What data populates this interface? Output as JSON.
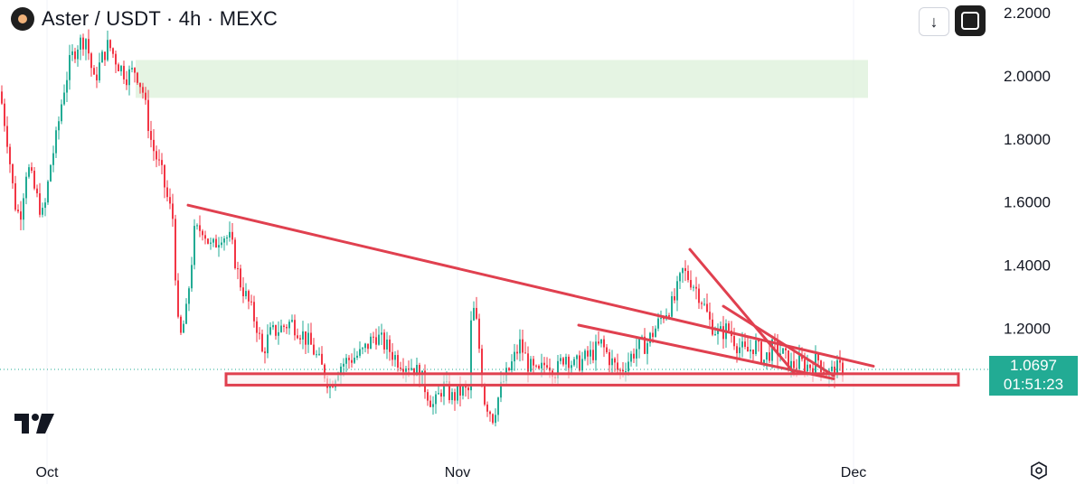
{
  "header": {
    "title": "Aster / USDT · 4h · MEXC"
  },
  "toolbar": {
    "download_icon": "arrow-down-icon",
    "fullscreen_icon": "fullscreen-icon"
  },
  "last_price": {
    "price": "1.0697",
    "countdown": "01:51:23",
    "color": "#22ab94"
  },
  "colors": {
    "up": "#22ab94",
    "down": "#f23645",
    "drawing": "#e0404f",
    "zone": "#dcf0da"
  },
  "chart_data": {
    "type": "candlestick",
    "title": "Aster / USDT · 4h · MEXC",
    "y_ticks": [
      "2.2000",
      "2.0000",
      "1.8000",
      "1.6000",
      "1.4000",
      "1.2000"
    ],
    "y_range": [
      0.9,
      2.2
    ],
    "x_ticks": [
      "Oct",
      "Nov",
      "Dec"
    ],
    "grid": false,
    "last_price": 1.0697,
    "price_path": [
      [
        1.95,
        0
      ],
      [
        1.8,
        8
      ],
      [
        1.6,
        16
      ],
      [
        1.55,
        22
      ],
      [
        1.72,
        30
      ],
      [
        1.62,
        40
      ],
      [
        1.55,
        48
      ],
      [
        1.72,
        56
      ],
      [
        1.8,
        62
      ],
      [
        1.95,
        70
      ],
      [
        2.05,
        78
      ],
      [
        2.1,
        86
      ],
      [
        2.12,
        95
      ],
      [
        1.98,
        104
      ],
      [
        2.05,
        112
      ],
      [
        2.1,
        120
      ],
      [
        2.04,
        130
      ],
      [
        2.0,
        140
      ],
      [
        2.02,
        150
      ],
      [
        1.95,
        158
      ],
      [
        1.78,
        168
      ],
      [
        1.7,
        178
      ],
      [
        1.6,
        186
      ],
      [
        1.55,
        191
      ],
      [
        1.15,
        198
      ],
      [
        1.25,
        206
      ],
      [
        1.5,
        215
      ],
      [
        1.52,
        224
      ],
      [
        1.45,
        234
      ],
      [
        1.5,
        245
      ],
      [
        1.48,
        255
      ],
      [
        1.35,
        265
      ],
      [
        1.28,
        275
      ],
      [
        1.2,
        285
      ],
      [
        1.12,
        290
      ],
      [
        1.18,
        298
      ],
      [
        1.2,
        310
      ],
      [
        1.22,
        322
      ],
      [
        1.18,
        335
      ],
      [
        1.14,
        345
      ],
      [
        1.08,
        355
      ],
      [
        1.02,
        365
      ],
      [
        1.08,
        375
      ],
      [
        1.1,
        385
      ],
      [
        1.12,
        400
      ],
      [
        1.18,
        415
      ],
      [
        1.14,
        428
      ],
      [
        1.1,
        440
      ],
      [
        1.08,
        455
      ],
      [
        1.05,
        465
      ],
      [
        1.0,
        472
      ],
      [
        0.95,
        480
      ],
      [
        1.02,
        490
      ],
      [
        0.98,
        500
      ],
      [
        1.0,
        510
      ],
      [
        1.0,
        518
      ],
      [
        1.28,
        522
      ],
      [
        1.2,
        528
      ],
      [
        0.98,
        535
      ],
      [
        0.92,
        545
      ],
      [
        1.02,
        555
      ],
      [
        1.08,
        565
      ],
      [
        1.15,
        575
      ],
      [
        1.08,
        585
      ],
      [
        1.05,
        595
      ],
      [
        1.1,
        605
      ],
      [
        1.06,
        615
      ],
      [
        1.12,
        625
      ],
      [
        1.08,
        635
      ],
      [
        1.1,
        645
      ],
      [
        1.12,
        655
      ],
      [
        1.15,
        665
      ],
      [
        1.1,
        675
      ],
      [
        1.06,
        685
      ],
      [
        1.1,
        695
      ],
      [
        1.14,
        705
      ],
      [
        1.15,
        715
      ],
      [
        1.2,
        725
      ],
      [
        1.25,
        735
      ],
      [
        1.28,
        745
      ],
      [
        1.38,
        755
      ],
      [
        1.35,
        765
      ],
      [
        1.3,
        775
      ],
      [
        1.22,
        785
      ],
      [
        1.18,
        795
      ],
      [
        1.2,
        805
      ],
      [
        1.15,
        815
      ],
      [
        1.12,
        825
      ],
      [
        1.15,
        835
      ],
      [
        1.1,
        845
      ],
      [
        1.14,
        855
      ],
      [
        1.12,
        865
      ],
      [
        1.08,
        875
      ],
      [
        1.09,
        885
      ],
      [
        1.08,
        895
      ],
      [
        1.1,
        905
      ],
      [
        1.05,
        915
      ],
      [
        1.07,
        925
      ],
      [
        1.0697,
        933
      ]
    ],
    "resistance_zone": [
      1.93,
      2.05
    ],
    "support_zone": [
      1.02,
      1.056
    ],
    "trendlines": [
      {
        "from": [
          208,
          1.59
        ],
        "to": [
          966,
          1.08
        ]
      },
      {
        "from": [
          640,
          1.21
        ],
        "to": [
          922,
          1.04
        ]
      },
      {
        "from": [
          763,
          1.45
        ],
        "to": [
          878,
          1.06
        ]
      },
      {
        "from": [
          800,
          1.27
        ],
        "to": [
          922,
          1.05
        ]
      }
    ]
  }
}
